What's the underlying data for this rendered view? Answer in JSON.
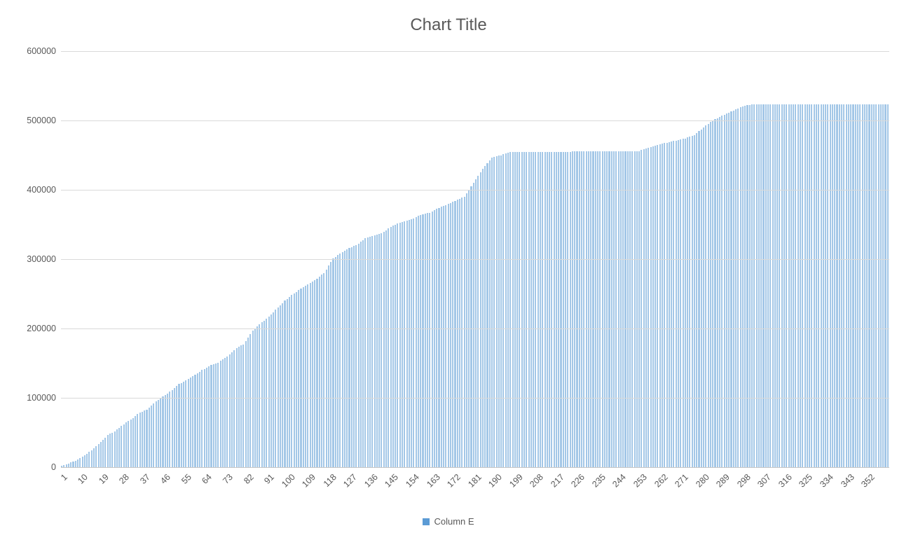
{
  "title": "Chart Title",
  "legend": {
    "label": "Column E",
    "marker_color": "#5b9bd5"
  },
  "colors": {
    "bar": "#a3c7e7",
    "gridline": "#d9d9d9",
    "axis_line": "#c6c6c6",
    "text": "#595959"
  },
  "y_axis": {
    "min": 0,
    "max": 600000,
    "tick_interval": 100000,
    "tick_labels": [
      "0",
      "100000",
      "200000",
      "300000",
      "400000",
      "500000",
      "600000"
    ]
  },
  "x_axis": {
    "label_interval": 9,
    "first_category": 1,
    "last_category": 360,
    "tick_labels": [
      1,
      10,
      19,
      28,
      37,
      46,
      55,
      64,
      73,
      82,
      91,
      100,
      109,
      118,
      127,
      136,
      145,
      154,
      163,
      172,
      181,
      190,
      199,
      208,
      217,
      226,
      235,
      244,
      253,
      262,
      271,
      280,
      289,
      298,
      307,
      316,
      325,
      334,
      343,
      352
    ]
  },
  "chart_data": {
    "type": "bar",
    "title": "Chart Title",
    "series": [
      {
        "name": "Column E"
      }
    ],
    "categories_start": 1,
    "categories_end": 360,
    "ylim": [
      0,
      600000
    ],
    "grid": true,
    "legend_position": "bottom",
    "values": [
      2000,
      3200,
      4300,
      5500,
      6700,
      7800,
      9000,
      11100,
      13300,
      15400,
      17600,
      19700,
      21900,
      24000,
      27100,
      30300,
      33400,
      36600,
      39700,
      42900,
      46000,
      48000,
      50000,
      52000,
      54500,
      57000,
      59500,
      62000,
      64200,
      66300,
      68500,
      71100,
      73800,
      76400,
      79000,
      80300,
      81700,
      83000,
      86000,
      89000,
      92000,
      95000,
      97300,
      99700,
      102000,
      104000,
      106000,
      108800,
      111600,
      114400,
      117200,
      120000,
      121500,
      123000,
      125000,
      127000,
      129000,
      131000,
      133000,
      135300,
      137700,
      140000,
      141800,
      143500,
      145300,
      147000,
      148300,
      149700,
      151000,
      153300,
      155500,
      157800,
      160000,
      163000,
      166000,
      169000,
      172000,
      173700,
      175300,
      177000,
      182000,
      187000,
      192000,
      197000,
      200000,
      203000,
      206000,
      208800,
      211500,
      214300,
      217000,
      220300,
      223700,
      227000,
      230300,
      233500,
      236800,
      240000,
      242700,
      245300,
      248000,
      250500,
      253000,
      255500,
      258000,
      260000,
      262000,
      264000,
      266000,
      268000,
      270000,
      272000,
      274700,
      277300,
      280000,
      285300,
      290500,
      295800,
      301000,
      303300,
      305700,
      308000,
      310000,
      312000,
      314000,
      316000,
      317300,
      318700,
      320000,
      322500,
      325000,
      327500,
      330000,
      331000,
      332000,
      333000,
      334000,
      335000,
      336000,
      337000,
      339300,
      341700,
      344000,
      346000,
      348000,
      350000,
      352000,
      353000,
      354000,
      355000,
      356000,
      357000,
      358000,
      359000,
      360700,
      362300,
      364000,
      364800,
      365500,
      366300,
      367000,
      368800,
      370500,
      372300,
      374000,
      375300,
      376700,
      378000,
      379500,
      381000,
      382500,
      384000,
      385500,
      387000,
      388500,
      390000,
      395000,
      400000,
      405000,
      410000,
      415000,
      420000,
      425000,
      430000,
      434000,
      438000,
      442000,
      446000,
      447000,
      448000,
      449000,
      450000,
      451300,
      452500,
      453800,
      455000,
      455000,
      455000,
      455000,
      455000,
      455000,
      455000,
      455000,
      455000,
      455000,
      455000,
      455000,
      455000,
      455000,
      455000,
      455000,
      455000,
      455000,
      455000,
      455000,
      455000,
      455000,
      455000,
      455000,
      455000,
      455000,
      455000,
      455500,
      455500,
      455500,
      455500,
      455500,
      455500,
      455500,
      455500,
      455500,
      455500,
      455500,
      455500,
      455500,
      455500,
      455500,
      455500,
      456000,
      456000,
      456000,
      456000,
      456000,
      456000,
      456000,
      456000,
      456000,
      456000,
      456000,
      456000,
      456000,
      456000,
      457300,
      458500,
      459800,
      461000,
      462000,
      463000,
      464000,
      465000,
      465800,
      466500,
      467300,
      468000,
      468800,
      469500,
      470300,
      471000,
      471800,
      472500,
      473300,
      474000,
      475300,
      476500,
      477800,
      479000,
      481800,
      484500,
      487300,
      490000,
      492500,
      495000,
      497500,
      500000,
      501800,
      503500,
      505300,
      507000,
      508500,
      510000,
      511500,
      513000,
      514500,
      516000,
      517500,
      519000,
      520000,
      521000,
      522000,
      522500,
      522800,
      523000,
      523000,
      523000,
      523000,
      523000,
      523000,
      523000,
      523000,
      523000,
      523000,
      523000,
      523000,
      523000,
      523000,
      523000,
      523000,
      523000,
      523000,
      523000,
      523000,
      523000,
      523000,
      523000,
      523000,
      523000,
      523000,
      523000,
      523000,
      523000,
      523000,
      523000,
      523000,
      523000,
      523000,
      523000,
      523000,
      523000,
      523000,
      523000,
      523000,
      523000,
      523000,
      523000,
      523000,
      523000,
      523000,
      523000,
      523000,
      523000,
      523000,
      523000,
      523000,
      523000,
      523000,
      523000,
      523000,
      523000,
      523000,
      523000
    ]
  }
}
